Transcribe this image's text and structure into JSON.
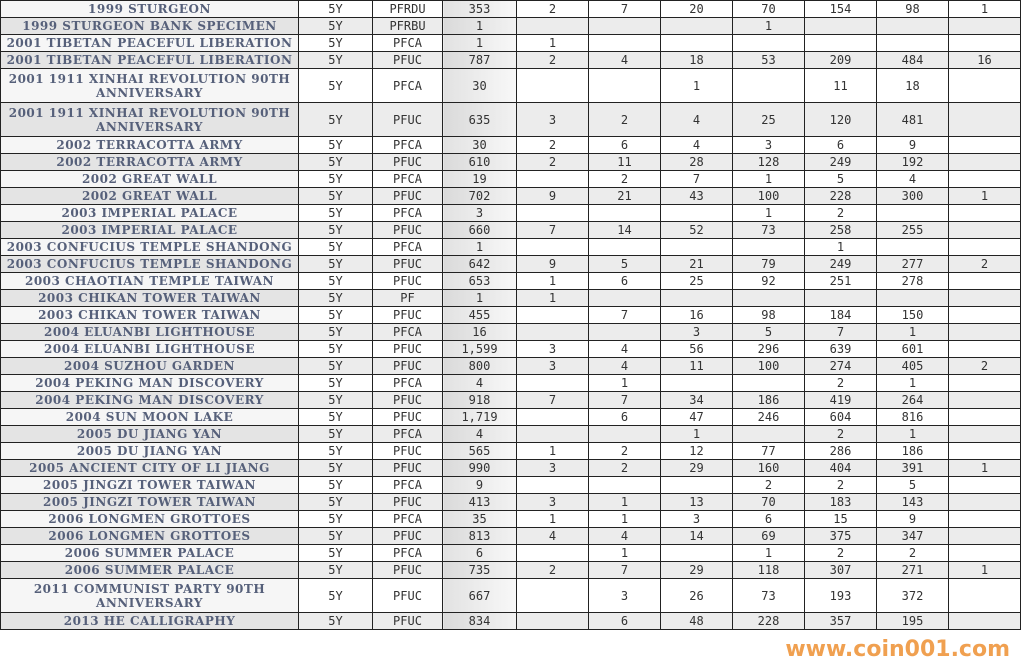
{
  "rows": [
    [
      "1999 STURGEON",
      "5Y",
      "PFRDU",
      "353",
      "2",
      "7",
      "20",
      "70",
      "154",
      "98",
      "1"
    ],
    [
      "1999 STURGEON BANK SPECIMEN",
      "5Y",
      "PFRBU",
      "1",
      "",
      "",
      "",
      "1",
      "",
      "",
      ""
    ],
    [
      "2001 TIBETAN PEACEFUL LIBERATION",
      "5Y",
      "PFCA",
      "1",
      "1",
      "",
      "",
      "",
      "",
      "",
      ""
    ],
    [
      "2001 TIBETAN PEACEFUL LIBERATION",
      "5Y",
      "PFUC",
      "787",
      "2",
      "4",
      "18",
      "53",
      "209",
      "484",
      "16"
    ],
    [
      "2001 1911 XINHAI REVOLUTION 90TH ANNIVERSARY",
      "5Y",
      "PFCA",
      "30",
      "",
      "",
      "1",
      "",
      "11",
      "18",
      ""
    ],
    [
      "2001 1911 XINHAI REVOLUTION 90TH ANNIVERSARY",
      "5Y",
      "PFUC",
      "635",
      "3",
      "2",
      "4",
      "25",
      "120",
      "481",
      ""
    ],
    [
      "2002 TERRACOTTA ARMY",
      "5Y",
      "PFCA",
      "30",
      "2",
      "6",
      "4",
      "3",
      "6",
      "9",
      ""
    ],
    [
      "2002 TERRACOTTA ARMY",
      "5Y",
      "PFUC",
      "610",
      "2",
      "11",
      "28",
      "128",
      "249",
      "192",
      ""
    ],
    [
      "2002 GREAT WALL",
      "5Y",
      "PFCA",
      "19",
      "",
      "2",
      "7",
      "1",
      "5",
      "4",
      ""
    ],
    [
      "2002 GREAT WALL",
      "5Y",
      "PFUC",
      "702",
      "9",
      "21",
      "43",
      "100",
      "228",
      "300",
      "1"
    ],
    [
      "2003 IMPERIAL PALACE",
      "5Y",
      "PFCA",
      "3",
      "",
      "",
      "",
      "1",
      "2",
      "",
      ""
    ],
    [
      "2003 IMPERIAL PALACE",
      "5Y",
      "PFUC",
      "660",
      "7",
      "14",
      "52",
      "73",
      "258",
      "255",
      ""
    ],
    [
      "2003 CONFUCIUS TEMPLE SHANDONG",
      "5Y",
      "PFCA",
      "1",
      "",
      "",
      "",
      "",
      "1",
      "",
      ""
    ],
    [
      "2003 CONFUCIUS TEMPLE SHANDONG",
      "5Y",
      "PFUC",
      "642",
      "9",
      "5",
      "21",
      "79",
      "249",
      "277",
      "2"
    ],
    [
      "2003 CHAOTIAN TEMPLE TAIWAN",
      "5Y",
      "PFUC",
      "653",
      "1",
      "6",
      "25",
      "92",
      "251",
      "278",
      ""
    ],
    [
      "2003 CHIKAN TOWER TAIWAN",
      "5Y",
      "PF",
      "1",
      "1",
      "",
      "",
      "",
      "",
      "",
      ""
    ],
    [
      "2003 CHIKAN TOWER TAIWAN",
      "5Y",
      "PFUC",
      "455",
      "",
      "7",
      "16",
      "98",
      "184",
      "150",
      ""
    ],
    [
      "2004 ELUANBI LIGHTHOUSE",
      "5Y",
      "PFCA",
      "16",
      "",
      "",
      "3",
      "5",
      "7",
      "1",
      ""
    ],
    [
      "2004 ELUANBI LIGHTHOUSE",
      "5Y",
      "PFUC",
      "1,599",
      "3",
      "4",
      "56",
      "296",
      "639",
      "601",
      ""
    ],
    [
      "2004 SUZHOU GARDEN",
      "5Y",
      "PFUC",
      "800",
      "3",
      "4",
      "11",
      "100",
      "274",
      "405",
      "2"
    ],
    [
      "2004 PEKING MAN DISCOVERY",
      "5Y",
      "PFCA",
      "4",
      "",
      "1",
      "",
      "",
      "2",
      "1",
      ""
    ],
    [
      "2004 PEKING MAN DISCOVERY",
      "5Y",
      "PFUC",
      "918",
      "7",
      "7",
      "34",
      "186",
      "419",
      "264",
      ""
    ],
    [
      "2004 SUN MOON LAKE",
      "5Y",
      "PFUC",
      "1,719",
      "",
      "6",
      "47",
      "246",
      "604",
      "816",
      ""
    ],
    [
      "2005 DU JIANG YAN",
      "5Y",
      "PFCA",
      "4",
      "",
      "",
      "1",
      "",
      "2",
      "1",
      ""
    ],
    [
      "2005 DU JIANG YAN",
      "5Y",
      "PFUC",
      "565",
      "1",
      "2",
      "12",
      "77",
      "286",
      "186",
      ""
    ],
    [
      "2005 ANCIENT CITY OF LI JIANG",
      "5Y",
      "PFUC",
      "990",
      "3",
      "2",
      "29",
      "160",
      "404",
      "391",
      "1"
    ],
    [
      "2005 JINGZI TOWER TAIWAN",
      "5Y",
      "PFCA",
      "9",
      "",
      "",
      "",
      "2",
      "2",
      "5",
      ""
    ],
    [
      "2005 JINGZI TOWER TAIWAN",
      "5Y",
      "PFUC",
      "413",
      "3",
      "1",
      "13",
      "70",
      "183",
      "143",
      ""
    ],
    [
      "2006 LONGMEN GROTTOES",
      "5Y",
      "PFCA",
      "35",
      "1",
      "1",
      "3",
      "6",
      "15",
      "9",
      ""
    ],
    [
      "2006 LONGMEN GROTTOES",
      "5Y",
      "PFUC",
      "813",
      "4",
      "4",
      "14",
      "69",
      "375",
      "347",
      ""
    ],
    [
      "2006 SUMMER PALACE",
      "5Y",
      "PFCA",
      "6",
      "",
      "1",
      "",
      "1",
      "2",
      "2",
      ""
    ],
    [
      "2006 SUMMER PALACE",
      "5Y",
      "PFUC",
      "735",
      "2",
      "7",
      "29",
      "118",
      "307",
      "271",
      "1"
    ],
    [
      "2011 COMMUNIST PARTY 90TH ANNIVERSARY",
      "5Y",
      "PFUC",
      "667",
      "",
      "3",
      "26",
      "73",
      "193",
      "372",
      ""
    ],
    [
      "2013 HE CALLIGRAPHY",
      "5Y",
      "PFUC",
      "834",
      "",
      "6",
      "48",
      "228",
      "357",
      "195",
      ""
    ]
  ],
  "watermark": "www.coin001.com"
}
